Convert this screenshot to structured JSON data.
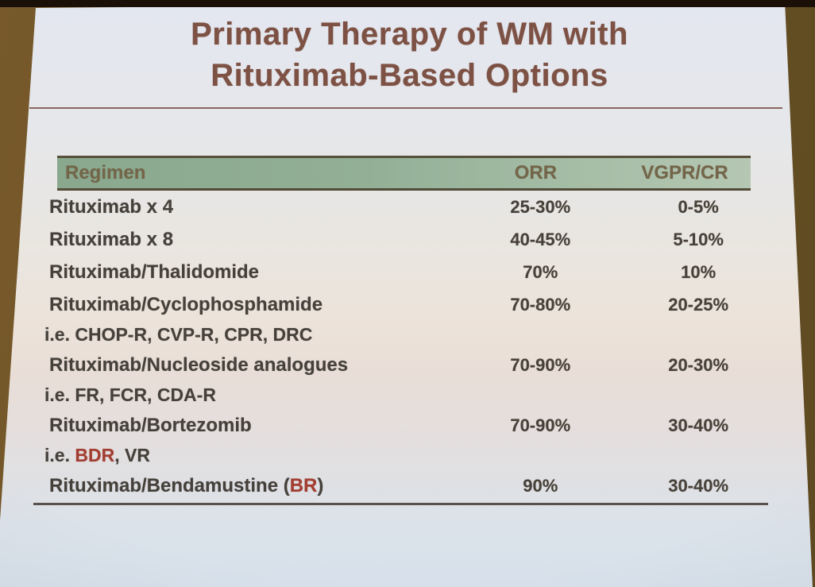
{
  "slide": {
    "title": {
      "line1": "Primary Therapy of WM with",
      "line2": "Rituximab-Based Options"
    },
    "table": {
      "headers": {
        "regimen": "Regimen",
        "orr": "ORR",
        "vgpr_cr": "VGPR/CR"
      },
      "rows": [
        {
          "label_pre": "Rituximab x 4",
          "label_accent": "",
          "label_post": "",
          "orr": "25-30%",
          "vgpr_cr": "0-5%"
        },
        {
          "label_pre": "Rituximab x 8",
          "label_accent": "",
          "label_post": "",
          "orr": "40-45%",
          "vgpr_cr": "5-10%"
        },
        {
          "label_pre": "Rituximab/Thalidomide",
          "label_accent": "",
          "label_post": "",
          "orr": "70%",
          "vgpr_cr": "10%"
        },
        {
          "label_pre": "Rituximab/Cyclophosphamide",
          "label_accent": "",
          "label_post": "",
          "sub_pre": "i.e. CHOP-R, CVP-R, CPR, DRC",
          "sub_accent": "",
          "sub_post": "",
          "orr": "70-80%",
          "vgpr_cr": "20-25%"
        },
        {
          "label_pre": "Rituximab/Nucleoside analogues",
          "label_accent": "",
          "label_post": "",
          "sub_pre": "i.e. FR, FCR, CDA-R",
          "sub_accent": "",
          "sub_post": "",
          "orr": "70-90%",
          "vgpr_cr": "20-30%"
        },
        {
          "label_pre": "Rituximab/Bortezomib",
          "label_accent": "",
          "label_post": "",
          "sub_pre": "i.e. ",
          "sub_accent": "BDR",
          "sub_post": ", VR",
          "orr": "70-90%",
          "vgpr_cr": "30-40%"
        },
        {
          "label_pre": "Rituximab/Bendamustine (",
          "label_accent": "BR",
          "label_post": ")",
          "orr": "90%",
          "vgpr_cr": "30-40%"
        }
      ]
    },
    "colors": {
      "title_text": "#7d5144",
      "accent_red": "#a23e31",
      "header_band_green": "#8fae93",
      "header_text": "#73654a",
      "body_text": "#45403a",
      "wall_brown": "#6d5426"
    }
  }
}
